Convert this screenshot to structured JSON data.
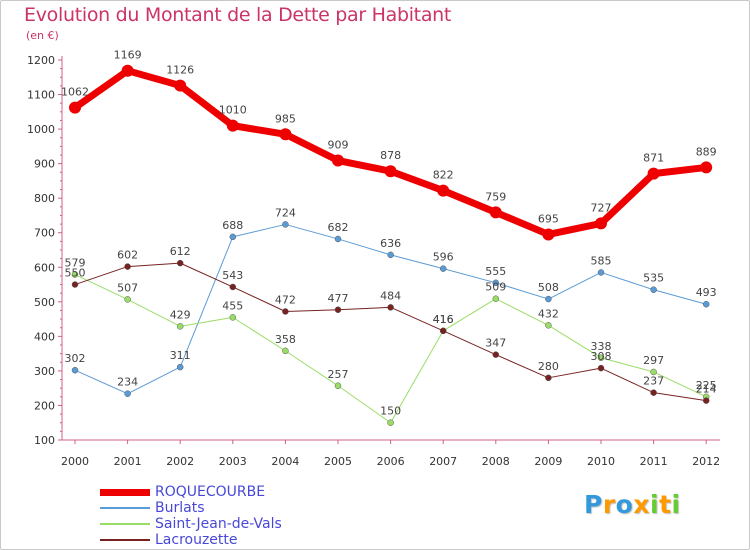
{
  "chart_data": {
    "type": "line",
    "title": "Evolution du Montant de la Dette par Habitant",
    "ylabel": "(en €)",
    "xlabel": "",
    "categories": [
      "2000",
      "2001",
      "2002",
      "2003",
      "2004",
      "2005",
      "2006",
      "2007",
      "2008",
      "2009",
      "2010",
      "2011",
      "2012"
    ],
    "yticks": [
      100,
      200,
      300,
      400,
      500,
      600,
      700,
      800,
      900,
      1000,
      1100,
      1200
    ],
    "ylim": [
      100,
      1200
    ],
    "grid": false,
    "legend_position": "bottom-left",
    "series": [
      {
        "name": "ROQUECOURBE",
        "color": "#ee0000",
        "values": [
          1062,
          1169,
          1126,
          1010,
          985,
          909,
          878,
          822,
          759,
          695,
          727,
          871,
          889
        ]
      },
      {
        "name": "Burlats",
        "color": "#5b9bd5",
        "values": [
          302,
          234,
          311,
          688,
          724,
          682,
          636,
          596,
          555,
          508,
          585,
          535,
          493
        ]
      },
      {
        "name": "Saint-Jean-de-Vals",
        "color": "#99dd66",
        "values": [
          579,
          507,
          429,
          455,
          358,
          257,
          150,
          416,
          509,
          432,
          338,
          297,
          225
        ]
      },
      {
        "name": "Lacrouzette",
        "color": "#772222",
        "values": [
          550,
          602,
          612,
          543,
          472,
          477,
          484,
          416,
          347,
          280,
          308,
          237,
          214
        ]
      }
    ]
  },
  "brand": {
    "letters": [
      "P",
      "r",
      "o",
      "x",
      "i",
      "t",
      "i"
    ],
    "colors": [
      "#3399dd",
      "#ff9900",
      "#3399dd",
      "#ff9900",
      "#66cc33",
      "#ff9900",
      "#66cc33"
    ]
  }
}
